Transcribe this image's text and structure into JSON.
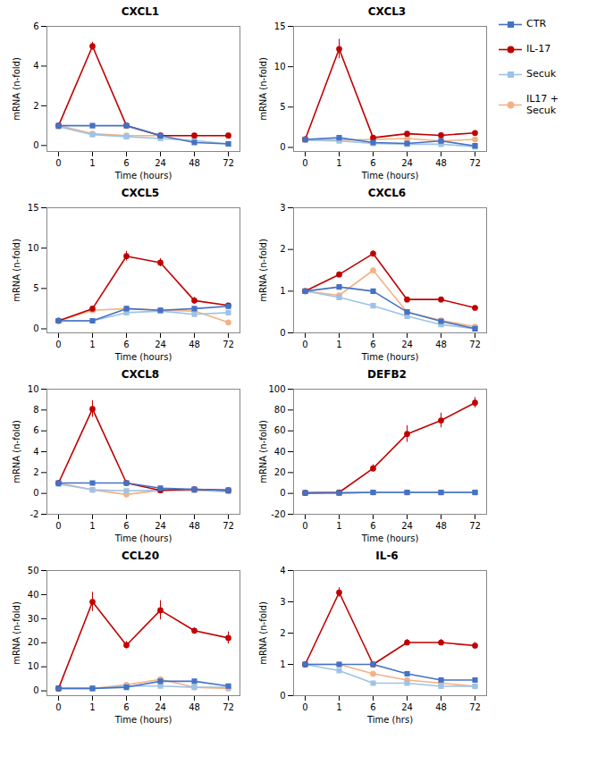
{
  "chart_data": [
    {
      "type": "line",
      "title": "CXCL1",
      "xlabel": "Time (hours)",
      "ylabel": "mRNA (n-fold)",
      "categories": [
        "0",
        "1",
        "6",
        "24",
        "48",
        "72"
      ],
      "ylim": [
        -0.3,
        6
      ],
      "yticks": [
        0,
        2,
        4,
        6
      ],
      "legend": "upper right",
      "series": [
        {
          "name": "CTR",
          "color": "#4472C4",
          "marker": "square",
          "values": [
            1.0,
            1.0,
            1.0,
            0.5,
            0.15,
            0.08
          ],
          "errors": [
            0.0,
            0.05,
            0.05,
            0.03,
            0.02,
            0.02
          ]
        },
        {
          "name": "IL-17",
          "color": "#C00000",
          "marker": "circle",
          "values": [
            1.0,
            5.0,
            1.0,
            0.5,
            0.5,
            0.5
          ],
          "errors": [
            0.0,
            0.2,
            0.05,
            0.05,
            0.05,
            0.05
          ]
        },
        {
          "name": "Secuk",
          "color": "#9DC3E6",
          "marker": "square",
          "values": [
            0.95,
            0.55,
            0.45,
            0.35,
            0.25,
            0.08
          ],
          "errors": [
            0.0,
            0.04,
            0.04,
            0.03,
            0.02,
            0.02
          ]
        },
        {
          "name": "IL17 +\nSecuk",
          "color": "#F4B183",
          "marker": "circle",
          "values": [
            1.0,
            0.6,
            0.5,
            0.5,
            0.5,
            0.5
          ],
          "errors": [
            0.0,
            0.04,
            0.04,
            0.03,
            0.03,
            0.03
          ]
        }
      ]
    },
    {
      "type": "line",
      "title": "CXCL3",
      "xlabel": "Time (hours)",
      "ylabel": "mRNA (n-fold)",
      "categories": [
        "0",
        "1",
        "6",
        "24",
        "48",
        "72"
      ],
      "ylim": [
        -0.5,
        15
      ],
      "yticks": [
        0,
        5,
        10,
        15
      ],
      "series": [
        {
          "name": "CTR",
          "color": "#4472C4",
          "marker": "square",
          "values": [
            1.0,
            1.2,
            0.6,
            0.5,
            0.8,
            0.2
          ],
          "errors": [
            0.0,
            0.08,
            0.05,
            0.05,
            0.05,
            0.05
          ]
        },
        {
          "name": "IL-17",
          "color": "#C00000",
          "marker": "circle",
          "values": [
            1.0,
            12.2,
            1.2,
            1.7,
            1.5,
            1.8
          ],
          "errors": [
            0.0,
            1.2,
            0.1,
            0.15,
            0.1,
            0.1
          ]
        },
        {
          "name": "Secuk",
          "color": "#9DC3E6",
          "marker": "square",
          "values": [
            0.9,
            0.8,
            0.5,
            0.4,
            0.4,
            0.1
          ],
          "errors": [
            0.0,
            0.05,
            0.05,
            0.05,
            0.05,
            0.05
          ]
        },
        {
          "name": "IL17 +\nSecuk",
          "color": "#F4B183",
          "marker": "circle",
          "values": [
            1.0,
            0.9,
            1.0,
            1.1,
            0.8,
            1.0
          ],
          "errors": [
            0.0,
            0.05,
            0.05,
            0.05,
            0.05,
            0.05
          ]
        }
      ]
    },
    {
      "type": "line",
      "title": "CXCL5",
      "xlabel": "Time (hours)",
      "ylabel": "mRNA (n-fold)",
      "categories": [
        "0",
        "1",
        "6",
        "24",
        "48",
        "72"
      ],
      "ylim": [
        -0.5,
        15
      ],
      "yticks": [
        0,
        5,
        10,
        15
      ],
      "series": [
        {
          "name": "CTR",
          "color": "#4472C4",
          "marker": "square",
          "values": [
            1.0,
            1.0,
            2.5,
            2.3,
            2.5,
            2.8
          ],
          "errors": [
            0.0,
            0.05,
            0.2,
            0.15,
            0.15,
            0.12
          ]
        },
        {
          "name": "IL-17",
          "color": "#C00000",
          "marker": "circle",
          "values": [
            1.0,
            2.5,
            9.0,
            8.2,
            3.5,
            2.9
          ],
          "errors": [
            0.0,
            0.15,
            0.6,
            0.5,
            0.4,
            0.15
          ]
        },
        {
          "name": "Secuk",
          "color": "#9DC3E6",
          "marker": "square",
          "values": [
            1.0,
            1.0,
            2.0,
            2.2,
            1.8,
            2.0
          ],
          "errors": [
            0.0,
            0.05,
            0.15,
            0.12,
            0.1,
            0.1
          ]
        },
        {
          "name": "IL17 +\nSecuk",
          "color": "#F4B183",
          "marker": "circle",
          "values": [
            1.0,
            2.3,
            2.5,
            2.3,
            2.2,
            0.8
          ],
          "errors": [
            0.0,
            0.1,
            0.12,
            0.1,
            0.1,
            0.1
          ]
        }
      ]
    },
    {
      "type": "line",
      "title": "CXCL6",
      "xlabel": "Time (hours)",
      "ylabel": "mRNA (n-fold)",
      "categories": [
        "0",
        "1",
        "6",
        "24",
        "48",
        "72"
      ],
      "ylim": [
        0,
        3
      ],
      "yticks": [
        0,
        1,
        2,
        3
      ],
      "series": [
        {
          "name": "CTR",
          "color": "#4472C4",
          "marker": "square",
          "values": [
            1.0,
            1.1,
            1.0,
            0.5,
            0.28,
            0.1
          ],
          "errors": [
            0.0,
            0.05,
            0.04,
            0.03,
            0.02,
            0.02
          ]
        },
        {
          "name": "IL-17",
          "color": "#C00000",
          "marker": "circle",
          "values": [
            1.0,
            1.4,
            1.9,
            0.8,
            0.8,
            0.6
          ],
          "errors": [
            0.0,
            0.06,
            0.07,
            0.05,
            0.05,
            0.05
          ]
        },
        {
          "name": "Secuk",
          "color": "#9DC3E6",
          "marker": "square",
          "values": [
            1.0,
            0.85,
            0.65,
            0.4,
            0.2,
            0.1
          ],
          "errors": [
            0.0,
            0.04,
            0.04,
            0.03,
            0.02,
            0.02
          ]
        },
        {
          "name": "IL17 +\nSecuk",
          "color": "#F4B183",
          "marker": "circle",
          "values": [
            1.0,
            0.9,
            1.5,
            0.5,
            0.3,
            0.15
          ],
          "errors": [
            0.0,
            0.04,
            0.05,
            0.03,
            0.02,
            0.02
          ]
        }
      ]
    },
    {
      "type": "line",
      "title": "CXCL8",
      "xlabel": "Time (hours)",
      "ylabel": "mRNA (n-fold)",
      "categories": [
        "0",
        "1",
        "6",
        "24",
        "48",
        "72"
      ],
      "ylim": [
        -2,
        10
      ],
      "yticks": [
        -2,
        0,
        2,
        4,
        6,
        8,
        10
      ],
      "series": [
        {
          "name": "CTR",
          "color": "#4472C4",
          "marker": "square",
          "values": [
            1.0,
            1.0,
            1.0,
            0.5,
            0.4,
            0.3
          ],
          "errors": [
            0.0,
            0.05,
            0.05,
            0.03,
            0.03,
            0.03
          ]
        },
        {
          "name": "IL-17",
          "color": "#C00000",
          "marker": "circle",
          "values": [
            1.0,
            8.1,
            1.0,
            0.3,
            0.4,
            0.3
          ],
          "errors": [
            0.0,
            0.8,
            0.08,
            0.03,
            0.03,
            0.03
          ]
        },
        {
          "name": "Secuk",
          "color": "#9DC3E6",
          "marker": "square",
          "values": [
            0.9,
            0.35,
            0.25,
            0.3,
            0.3,
            0.2
          ],
          "errors": [
            0.0,
            0.03,
            0.03,
            0.02,
            0.02,
            0.02
          ]
        },
        {
          "name": "IL17 +\nSecuk",
          "color": "#F4B183",
          "marker": "circle",
          "values": [
            1.0,
            0.35,
            -0.1,
            0.3,
            0.3,
            0.2
          ],
          "errors": [
            0.0,
            0.03,
            0.03,
            0.02,
            0.02,
            0.02
          ]
        }
      ]
    },
    {
      "type": "line",
      "title": "DEFB2",
      "xlabel": "Time (hours)",
      "ylabel": "mRNA (n-fold)",
      "categories": [
        "0",
        "1",
        "6",
        "24",
        "48",
        "72"
      ],
      "ylim": [
        -20,
        100
      ],
      "yticks": [
        -20,
        0,
        20,
        40,
        60,
        80,
        100
      ],
      "series": [
        {
          "name": "CTR",
          "color": "#4472C4",
          "marker": "square",
          "values": [
            0.5,
            0.5,
            1.0,
            1.0,
            1.0,
            1.0
          ],
          "errors": [
            0.0,
            0.05,
            0.05,
            0.05,
            0.05,
            0.05
          ]
        },
        {
          "name": "IL-17",
          "color": "#C00000",
          "marker": "circle",
          "values": [
            0.5,
            1.0,
            24.0,
            57.0,
            70.0,
            87.0
          ],
          "errors": [
            0.0,
            0.1,
            3.5,
            8.0,
            7.0,
            5.0
          ]
        },
        {
          "name": "Secuk",
          "color": "#9DC3E6",
          "marker": "square",
          "values": [
            0.5,
            0.5,
            0.8,
            0.8,
            0.8,
            0.8
          ],
          "errors": [
            0.0,
            0.05,
            0.05,
            0.05,
            0.05,
            0.05
          ]
        },
        {
          "name": "IL17 +\nSecuk",
          "color": "#F4B183",
          "marker": "circle",
          "values": [
            0.5,
            0.5,
            1.0,
            1.0,
            1.0,
            1.0
          ],
          "errors": [
            0.0,
            0.05,
            0.05,
            0.05,
            0.05,
            0.05
          ]
        }
      ]
    },
    {
      "type": "line",
      "title": "CCL20",
      "xlabel": "Time (hours)",
      "ylabel": "mRNA (n-fold)",
      "categories": [
        "0",
        "1",
        "6",
        "24",
        "48",
        "72"
      ],
      "ylim": [
        -2,
        50
      ],
      "yticks": [
        0,
        10,
        20,
        30,
        40,
        50
      ],
      "series": [
        {
          "name": "CTR",
          "color": "#4472C4",
          "marker": "square",
          "values": [
            1.0,
            1.0,
            1.5,
            4.0,
            4.0,
            2.0
          ],
          "errors": [
            0.0,
            0.1,
            0.1,
            0.2,
            0.2,
            0.1
          ]
        },
        {
          "name": "IL-17",
          "color": "#C00000",
          "marker": "circle",
          "values": [
            1.0,
            37.0,
            19.0,
            33.5,
            25.0,
            22.0
          ],
          "errors": [
            0.0,
            4.0,
            1.5,
            4.0,
            1.2,
            2.5
          ]
        },
        {
          "name": "Secuk",
          "color": "#9DC3E6",
          "marker": "square",
          "values": [
            1.0,
            1.0,
            2.0,
            2.0,
            1.5,
            1.5
          ],
          "errors": [
            0.0,
            0.1,
            0.1,
            0.1,
            0.1,
            0.1
          ]
        },
        {
          "name": "IL17 +\nSecuk",
          "color": "#F4B183",
          "marker": "circle",
          "values": [
            1.0,
            1.0,
            2.5,
            4.8,
            1.5,
            1.0
          ],
          "errors": [
            0.0,
            0.1,
            0.15,
            0.2,
            0.1,
            0.1
          ]
        }
      ]
    },
    {
      "type": "line",
      "title": "IL-6",
      "xlabel": "Time (hrs)",
      "ylabel": "mRNA (n-fold)",
      "categories": [
        "0",
        "1",
        "6",
        "24",
        "48",
        "72"
      ],
      "ylim": [
        0,
        4
      ],
      "yticks": [
        0,
        1,
        2,
        3,
        4
      ],
      "series": [
        {
          "name": "CTR",
          "color": "#4472C4",
          "marker": "square",
          "values": [
            1.0,
            1.0,
            1.0,
            0.7,
            0.5,
            0.5
          ],
          "errors": [
            0.0,
            0.05,
            0.05,
            0.03,
            0.03,
            0.03
          ]
        },
        {
          "name": "IL-17",
          "color": "#C00000",
          "marker": "circle",
          "values": [
            1.0,
            3.3,
            1.0,
            1.7,
            1.7,
            1.6
          ],
          "errors": [
            0.0,
            0.15,
            0.05,
            0.1,
            0.1,
            0.1
          ]
        },
        {
          "name": "Secuk",
          "color": "#9DC3E6",
          "marker": "square",
          "values": [
            1.0,
            0.8,
            0.4,
            0.4,
            0.3,
            0.3
          ],
          "errors": [
            0.0,
            0.04,
            0.03,
            0.03,
            0.02,
            0.02
          ]
        },
        {
          "name": "IL17 +\nSecuk",
          "color": "#F4B183",
          "marker": "circle",
          "values": [
            1.0,
            1.0,
            0.7,
            0.5,
            0.4,
            0.3
          ],
          "errors": [
            0.0,
            0.05,
            0.03,
            0.03,
            0.02,
            0.02
          ]
        }
      ]
    }
  ]
}
